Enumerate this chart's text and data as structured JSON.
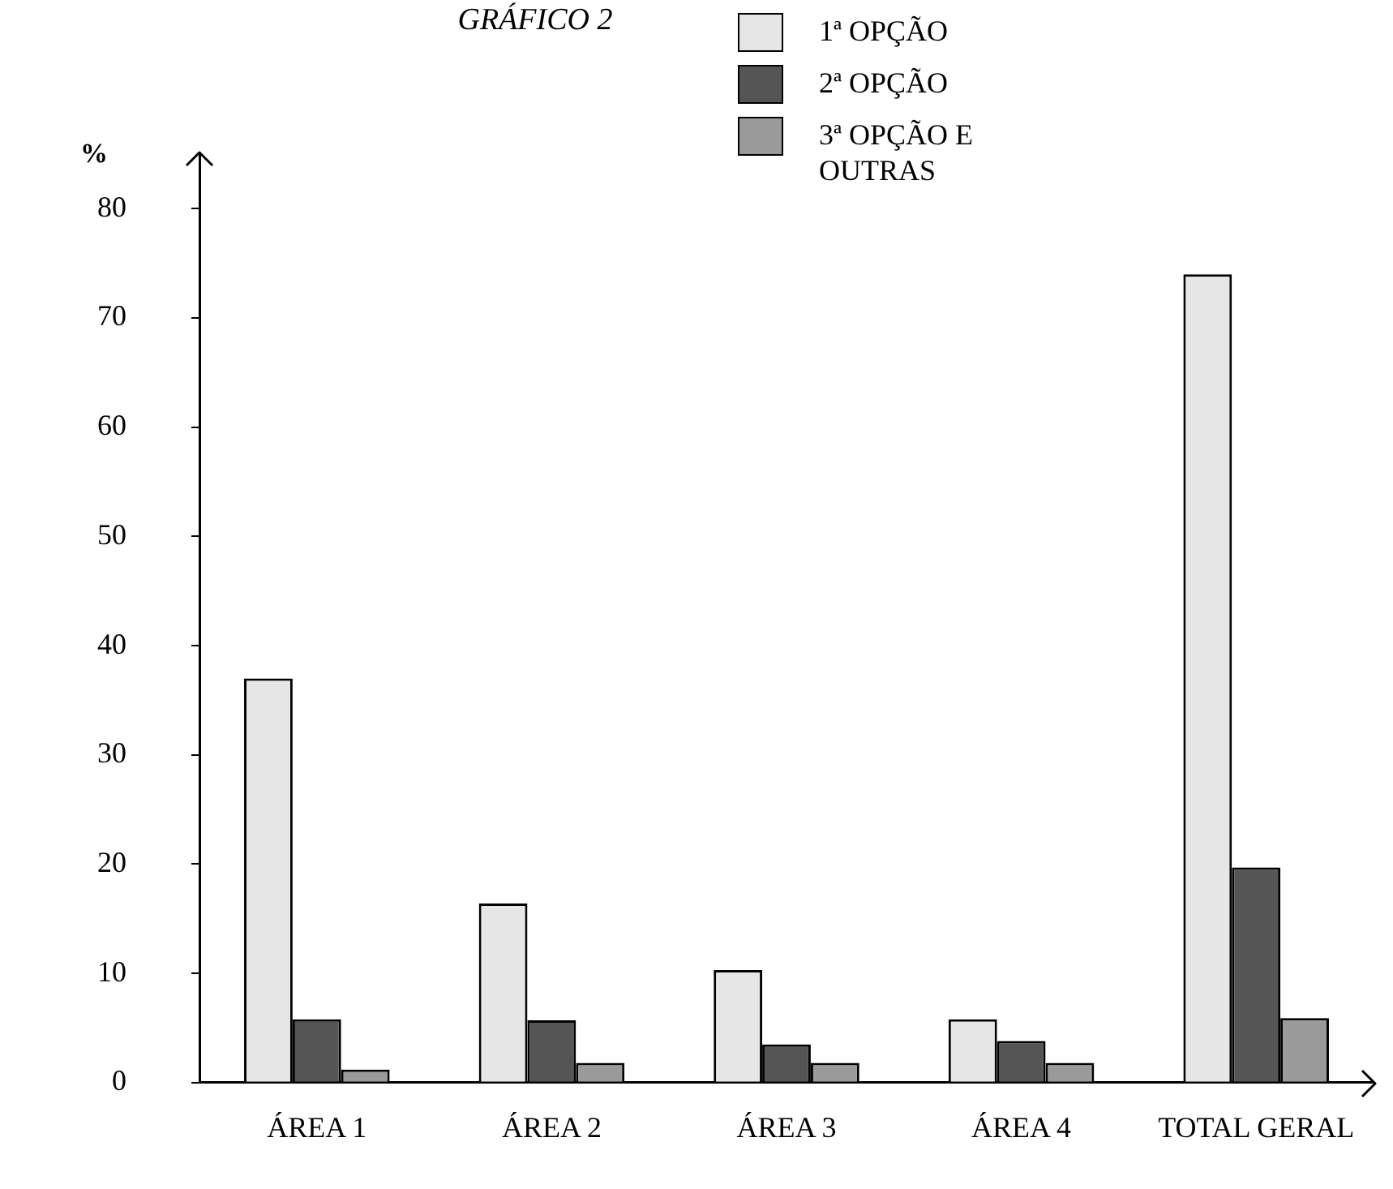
{
  "chart_data": {
    "type": "bar",
    "title": "GRÁFICO 2",
    "ylabel": "%",
    "categories": [
      "ÁREA 1",
      "ÁREA 2",
      "ÁREA 3",
      "ÁREA 4",
      "TOTAL GERAL"
    ],
    "series": [
      {
        "name": "1ª OPÇÃO",
        "color": "#e6e6e6",
        "values": [
          37,
          16.4,
          10.3,
          5.8,
          74
        ]
      },
      {
        "name": "2ª OPÇÃO",
        "color": "#555555",
        "values": [
          5.8,
          5.7,
          3.5,
          3.8,
          19.7
        ]
      },
      {
        "name": "3ª OPÇÃO E OUTRAS",
        "color": "#9a9a9a",
        "values": [
          1.2,
          1.8,
          1.8,
          1.8,
          5.9
        ]
      }
    ],
    "ylim": [
      0,
      85
    ],
    "yticks": [
      0,
      10,
      20,
      30,
      40,
      50,
      60,
      70,
      80
    ],
    "grid": false,
    "legend": "top right"
  }
}
